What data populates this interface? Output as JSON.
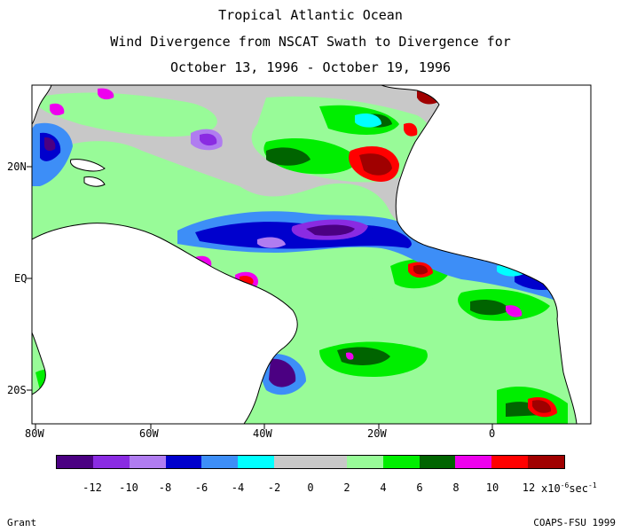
{
  "title": {
    "line1": "Tropical Atlantic Ocean",
    "line2": "Wind Divergence from NSCAT Swath to Divergence for",
    "line3": "October 13, 1996 - October 19, 1996"
  },
  "axes": {
    "lat_labels": [
      "20N",
      "EQ",
      "20S"
    ],
    "lon_labels": [
      "80W",
      "60W",
      "40W",
      "20W",
      "0"
    ]
  },
  "colorbar": {
    "colors": [
      "#4b0082",
      "#8a2be2",
      "#b07cf0",
      "#0000cd",
      "#3d8ef7",
      "#00ffff",
      "#c8c8c8",
      "#c8c8c8",
      "#98fb98",
      "#00ee00",
      "#006400",
      "#ee00ee",
      "#ff0000",
      "#a00000"
    ],
    "ticks": [
      "-12",
      "-10",
      "-8",
      "-6",
      "-4",
      "-2",
      "0",
      "2",
      "4",
      "6",
      "8",
      "10",
      "12"
    ],
    "unit_base": "x10",
    "unit_exp": "-6",
    "unit_tail": "sec",
    "unit_tail_exp": "-1"
  },
  "footer": {
    "left": "Grant",
    "right": "COAPS-FSU 1999"
  },
  "map_colors": {
    "ocean_gray": "#c8c8c8",
    "land": "#ffffff"
  }
}
